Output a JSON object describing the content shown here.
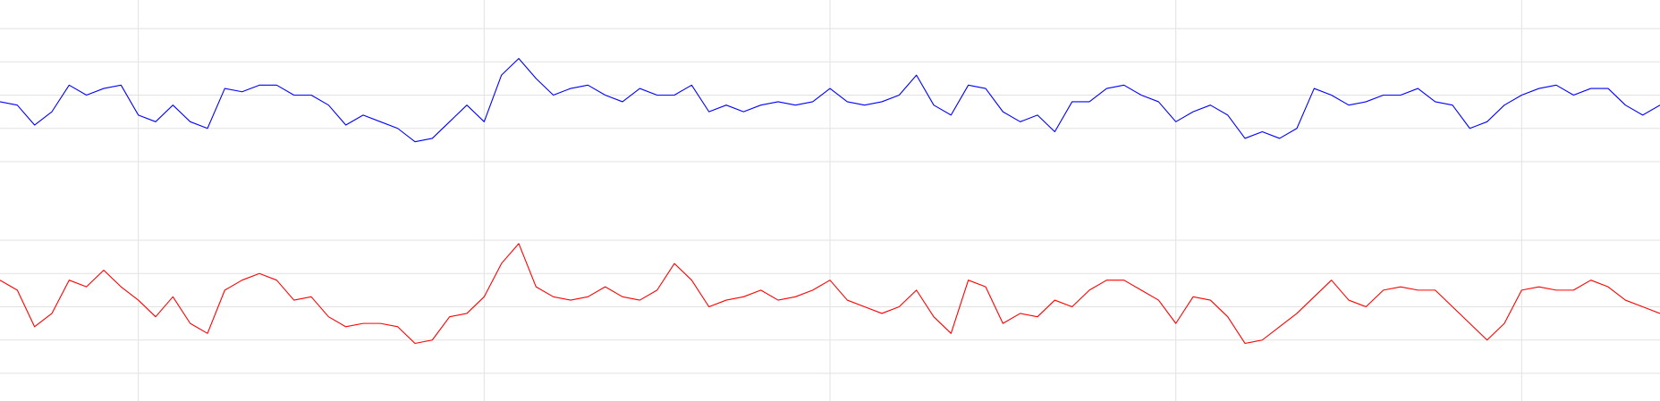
{
  "chart_data": [
    {
      "type": "line",
      "color": "#0000ff",
      "grid": true,
      "xlim": [
        0,
        48
      ],
      "xticks": [
        4,
        14,
        24,
        34,
        44
      ],
      "ylim": [
        0,
        40
      ],
      "yticks": [
        0,
        10,
        20,
        30,
        40
      ],
      "x": [
        0,
        0.5,
        1,
        1.5,
        2,
        2.5,
        3,
        3.5,
        4,
        4.5,
        5,
        5.5,
        6,
        6.5,
        7,
        7.5,
        8,
        8.5,
        9,
        9.5,
        10,
        10.5,
        11,
        11.5,
        12,
        12.5,
        13,
        13.5,
        14,
        14.5,
        15,
        15.5,
        16,
        16.5,
        17,
        17.5,
        18,
        18.5,
        19,
        19.5,
        20,
        20.5,
        21,
        21.5,
        22,
        22.5,
        23,
        23.5,
        24,
        24.5,
        25,
        25.5,
        26,
        26.5,
        27,
        27.5,
        28,
        28.5,
        29,
        29.5,
        30,
        30.5,
        31,
        31.5,
        32,
        32.5,
        33,
        33.5,
        34,
        34.5,
        35,
        35.5,
        36,
        36.5,
        37,
        37.5,
        38,
        38.5,
        39,
        39.5,
        40,
        40.5,
        41,
        41.5,
        42,
        42.5,
        43,
        43.5,
        44,
        44.5,
        45,
        45.5,
        46,
        46.5,
        47,
        47.5,
        48
      ],
      "values": [
        18,
        17,
        11,
        15,
        23,
        20,
        22,
        23,
        14,
        12,
        17,
        12,
        10,
        22,
        21,
        23,
        23,
        20,
        20,
        17,
        11,
        14,
        12,
        10,
        6,
        7,
        12,
        17,
        12,
        26,
        31,
        25,
        20,
        22,
        23,
        20,
        18,
        22,
        20,
        20,
        23,
        15,
        17,
        15,
        17,
        18,
        17,
        18,
        22,
        18,
        17,
        18,
        20,
        26,
        17,
        14,
        23,
        22,
        15,
        12,
        14,
        9,
        18,
        18,
        22,
        23,
        20,
        18,
        12,
        15,
        17,
        14,
        7,
        9,
        7,
        10,
        22,
        20,
        17,
        18,
        20,
        20,
        22,
        18,
        17,
        10,
        12,
        17,
        20,
        22,
        23,
        20,
        22,
        22,
        17,
        14,
        17
      ]
    },
    {
      "type": "line",
      "color": "#ff0000",
      "grid": true,
      "xlim": [
        0,
        48
      ],
      "xticks": [
        4,
        14,
        24,
        34,
        44
      ],
      "ylim": [
        0,
        40
      ],
      "yticks": [
        0,
        10,
        20,
        30,
        40
      ],
      "x": [
        0,
        0.5,
        1,
        1.5,
        2,
        2.5,
        3,
        3.5,
        4,
        4.5,
        5,
        5.5,
        6,
        6.5,
        7,
        7.5,
        8,
        8.5,
        9,
        9.5,
        10,
        10.5,
        11,
        11.5,
        12,
        12.5,
        13,
        13.5,
        14,
        14.5,
        15,
        15.5,
        16,
        16.5,
        17,
        17.5,
        18,
        18.5,
        19,
        19.5,
        20,
        20.5,
        21,
        21.5,
        22,
        22.5,
        23,
        23.5,
        24,
        24.5,
        25,
        25.5,
        26,
        26.5,
        27,
        27.5,
        28,
        28.5,
        29,
        29.5,
        30,
        30.5,
        31,
        31.5,
        32,
        32.5,
        33,
        33.5,
        34,
        34.5,
        35,
        35.5,
        36,
        36.5,
        37,
        37.5,
        38,
        38.5,
        39,
        39.5,
        40,
        40.5,
        41,
        41.5,
        42,
        42.5,
        43,
        43.5,
        44,
        44.5,
        45,
        45.5,
        46,
        46.5,
        47,
        47.5,
        48
      ],
      "values": [
        28,
        25,
        14,
        18,
        28,
        26,
        31,
        26,
        22,
        17,
        23,
        15,
        12,
        25,
        28,
        30,
        28,
        22,
        23,
        17,
        14,
        15,
        15,
        14,
        9,
        10,
        17,
        18,
        23,
        33,
        39,
        26,
        23,
        22,
        23,
        26,
        23,
        22,
        25,
        33,
        28,
        20,
        22,
        23,
        25,
        22,
        23,
        25,
        28,
        22,
        20,
        18,
        20,
        25,
        17,
        12,
        28,
        26,
        15,
        18,
        17,
        22,
        20,
        25,
        28,
        28,
        25,
        22,
        15,
        23,
        22,
        17,
        9,
        10,
        14,
        18,
        23,
        28,
        22,
        20,
        25,
        26,
        25,
        25,
        20,
        15,
        10,
        15,
        25,
        26,
        25,
        25,
        28,
        26,
        22,
        20,
        18
      ]
    }
  ]
}
